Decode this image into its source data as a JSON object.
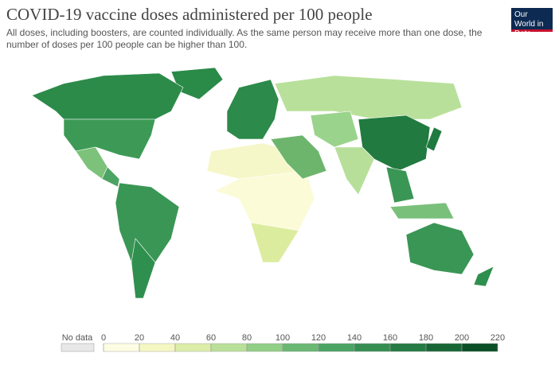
{
  "header": {
    "title": "COVID-19 vaccine doses administered per 100 people",
    "subtitle": "All doses, including boosters, are counted individually. As the same person may receive more than one dose, the number of doses per 100 people can be higher than 100.",
    "logo": "Our World in Data"
  },
  "legend": {
    "no_data_label": "No data",
    "no_data_color": "#e8e8e8",
    "ticks": [
      0,
      20,
      40,
      60,
      80,
      100,
      120,
      140,
      160,
      180,
      200,
      220
    ],
    "colors": [
      "#fdfde3",
      "#f5f7c3",
      "#dcedaa",
      "#b9e09a",
      "#91cf86",
      "#6ab874",
      "#4ba463",
      "#378e52",
      "#267a43",
      "#186636",
      "#0b4f27"
    ]
  }
}
